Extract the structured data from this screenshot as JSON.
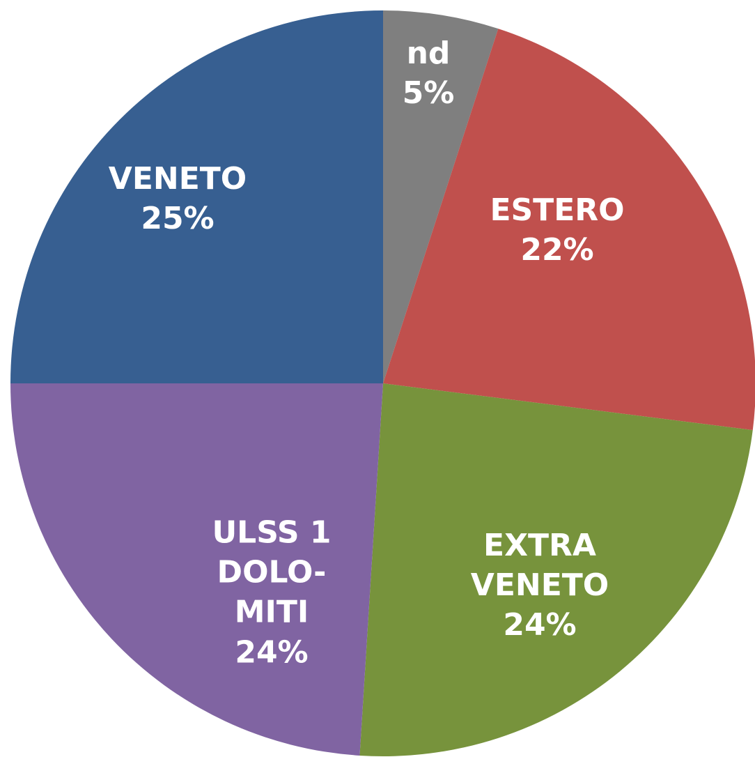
{
  "chart_data": {
    "type": "pie",
    "categories": [
      "nd",
      "ESTERO",
      "EXTRA VENETO",
      "ULSS 1 DOLO-MITI",
      "VENETO"
    ],
    "values": [
      5,
      22,
      24,
      24,
      25
    ],
    "value_labels": [
      "5%",
      "22%",
      "24%",
      "24%",
      "25%"
    ],
    "colors": [
      "#7f7f7f",
      "#c0504d",
      "#77933c",
      "#8064a2",
      "#375f91"
    ]
  }
}
